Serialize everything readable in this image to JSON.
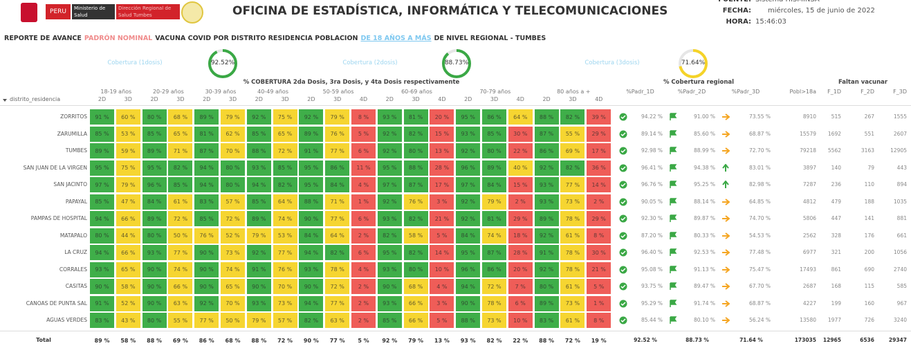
{
  "header": {
    "logo_text": "PERU",
    "ministry": "Ministerio de Salud",
    "direction": "Dirección Regional de Salud Tumbes",
    "title": "OFICINA DE ESTADÍSTICA, INFORMÁTICA Y TELECOMUNICACIONES",
    "info": [
      {
        "label": "FUENTE:",
        "value": "Sistema HISMINSA"
      },
      {
        "label": "FECHA:",
        "value": "miércoles, 15 de junio de 2022"
      },
      {
        "label": "HORA:",
        "value": "15:46:03"
      }
    ]
  },
  "report_title": [
    {
      "text": "REPORTE DE AVANCE",
      "color": "#333333"
    },
    {
      "text": "PADRÓN NOMINAL",
      "color": "#f08c8c"
    },
    {
      "text": "VACUNA COVID POR DISTRITO RESIDENCIA POBLACION",
      "color": "#333333"
    },
    {
      "text": "DE 18 AÑOS A MÁS",
      "color": "#7ec8f0"
    },
    {
      "text": "DE NIVEL REGIONAL - TUMBES",
      "color": "#333333"
    }
  ],
  "gauges": [
    {
      "label": "Cobertura (1dosis)",
      "value": 92.52,
      "value_label": "92.52%",
      "color": "#3aa845"
    },
    {
      "label": "Cobertura (2dosis)",
      "value": 88.73,
      "value_label": "88.73%",
      "color": "#3aa845"
    },
    {
      "label": "Cobertura (3dosis)",
      "value": 71.64,
      "value_label": "71.64%",
      "color": "#f5d328"
    }
  ],
  "table": {
    "caption": "% COBERTURA 2da Dosis, 3ra Dosis, y 4ta Dosis respectivamente",
    "sort_column": "distrito_residencia",
    "age_groups": [
      {
        "label": "18-19 años",
        "doses": [
          "2D",
          "3D"
        ]
      },
      {
        "label": "20-29 años",
        "doses": [
          "2D",
          "3D"
        ]
      },
      {
        "label": "30-39 años",
        "doses": [
          "2D",
          "3D"
        ]
      },
      {
        "label": "40-49 años",
        "doses": [
          "2D",
          "3D"
        ]
      },
      {
        "label": "50-59 años",
        "doses": [
          "2D",
          "3D",
          "4D"
        ]
      },
      {
        "label": "60-69 años",
        "doses": [
          "2D",
          "3D",
          "4D"
        ]
      },
      {
        "label": "70-79 años",
        "doses": [
          "2D",
          "3D",
          "4D"
        ]
      },
      {
        "label": "80 años a +",
        "doses": [
          "2D",
          "3D",
          "4D"
        ]
      }
    ],
    "regional_caption": "% Cobertura regional",
    "pending_caption": "Faltan vacunar",
    "right_columns": [
      "%Padr_1D",
      "%Padr_2D",
      "%Padr_3D",
      "Pobl>18a",
      "F_1D",
      "F_2D",
      "F_3D"
    ],
    "rows": [
      {
        "district": "ZORRITOS",
        "cells": [
          "91 %",
          "60 %",
          "80 %",
          "68 %",
          "89 %",
          "79 %",
          "92 %",
          "75 %",
          "92 %",
          "79 %",
          "8 %",
          "93 %",
          "81 %",
          "20 %",
          "95 %",
          "86 %",
          "64 %",
          "88 %",
          "82 %",
          "39 %"
        ],
        "coverage": [
          "94.22 %",
          "91.00 %",
          "73.55 %"
        ],
        "counts": [
          8910,
          515,
          267,
          1555
        ]
      },
      {
        "district": "ZARUMILLA",
        "cells": [
          "85 %",
          "53 %",
          "85 %",
          "65 %",
          "81 %",
          "62 %",
          "85 %",
          "65 %",
          "89 %",
          "76 %",
          "5 %",
          "92 %",
          "82 %",
          "15 %",
          "93 %",
          "85 %",
          "30 %",
          "87 %",
          "55 %",
          "29 %"
        ],
        "coverage": [
          "89.14 %",
          "85.60 %",
          "68.87 %"
        ],
        "counts": [
          15579,
          1692,
          551,
          2607
        ]
      },
      {
        "district": "TUMBES",
        "cells": [
          "89 %",
          "59 %",
          "89 %",
          "71 %",
          "87 %",
          "70 %",
          "88 %",
          "72 %",
          "91 %",
          "77 %",
          "6 %",
          "92 %",
          "80 %",
          "13 %",
          "92 %",
          "80 %",
          "22 %",
          "86 %",
          "69 %",
          "17 %"
        ],
        "coverage": [
          "92.98 %",
          "88.99 %",
          "72.70 %"
        ],
        "counts": [
          79218,
          5562,
          3163,
          12905
        ]
      },
      {
        "district": "SAN JUAN DE LA VIRGEN",
        "cells": [
          "95 %",
          "75 %",
          "95 %",
          "82 %",
          "94 %",
          "80 %",
          "93 %",
          "85 %",
          "95 %",
          "86 %",
          "11 %",
          "95 %",
          "88 %",
          "28 %",
          "96 %",
          "89 %",
          "40 %",
          "92 %",
          "82 %",
          "36 %"
        ],
        "coverage": [
          "96.41 %",
          "94.38 %",
          "83.01 %"
        ],
        "counts": [
          3897,
          140,
          79,
          443
        ]
      },
      {
        "district": "SAN JACINTO",
        "cells": [
          "97 %",
          "79 %",
          "96 %",
          "85 %",
          "94 %",
          "80 %",
          "94 %",
          "82 %",
          "95 %",
          "84 %",
          "4 %",
          "97 %",
          "87 %",
          "17 %",
          "97 %",
          "84 %",
          "15 %",
          "93 %",
          "77 %",
          "14 %"
        ],
        "coverage": [
          "96.76 %",
          "95.25 %",
          "82.98 %"
        ],
        "counts": [
          7287,
          236,
          110,
          894
        ]
      },
      {
        "district": "PAPAYAL",
        "cells": [
          "85 %",
          "47 %",
          "84 %",
          "61 %",
          "83 %",
          "57 %",
          "85 %",
          "64 %",
          "88 %",
          "71 %",
          "1 %",
          "92 %",
          "76 %",
          "3 %",
          "92 %",
          "79 %",
          "2 %",
          "93 %",
          "73 %",
          "2 %"
        ],
        "coverage": [
          "90.05 %",
          "88.14 %",
          "64.85 %"
        ],
        "counts": [
          4812,
          479,
          188,
          1035
        ]
      },
      {
        "district": "PAMPAS DE HOSPITAL",
        "cells": [
          "94 %",
          "66 %",
          "89 %",
          "72 %",
          "85 %",
          "72 %",
          "89 %",
          "74 %",
          "90 %",
          "77 %",
          "6 %",
          "93 %",
          "82 %",
          "21 %",
          "92 %",
          "81 %",
          "29 %",
          "89 %",
          "78 %",
          "29 %"
        ],
        "coverage": [
          "92.30 %",
          "89.87 %",
          "74.70 %"
        ],
        "counts": [
          5806,
          447,
          141,
          881
        ]
      },
      {
        "district": "MATAPALO",
        "cells": [
          "80 %",
          "44 %",
          "80 %",
          "50 %",
          "76 %",
          "52 %",
          "79 %",
          "53 %",
          "84 %",
          "64 %",
          "2 %",
          "82 %",
          "58 %",
          "5 %",
          "84 %",
          "74 %",
          "18 %",
          "92 %",
          "61 %",
          "8 %"
        ],
        "coverage": [
          "87.20 %",
          "80.33 %",
          "54.53 %"
        ],
        "counts": [
          2562,
          328,
          176,
          661
        ]
      },
      {
        "district": "LA CRUZ",
        "cells": [
          "94 %",
          "66 %",
          "93 %",
          "77 %",
          "90 %",
          "73 %",
          "92 %",
          "77 %",
          "94 %",
          "82 %",
          "6 %",
          "95 %",
          "82 %",
          "14 %",
          "95 %",
          "87 %",
          "28 %",
          "91 %",
          "78 %",
          "30 %"
        ],
        "coverage": [
          "96.40 %",
          "92.53 %",
          "77.48 %"
        ],
        "counts": [
          6977,
          321,
          200,
          1056
        ]
      },
      {
        "district": "CORRALES",
        "cells": [
          "93 %",
          "65 %",
          "90 %",
          "74 %",
          "90 %",
          "74 %",
          "91 %",
          "76 %",
          "93 %",
          "78 %",
          "4 %",
          "93 %",
          "80 %",
          "10 %",
          "96 %",
          "86 %",
          "20 %",
          "92 %",
          "78 %",
          "21 %"
        ],
        "coverage": [
          "95.08 %",
          "91.13 %",
          "75.47 %"
        ],
        "counts": [
          17493,
          861,
          690,
          2740
        ]
      },
      {
        "district": "CASITAS",
        "cells": [
          "90 %",
          "58 %",
          "90 %",
          "66 %",
          "90 %",
          "65 %",
          "90 %",
          "70 %",
          "90 %",
          "72 %",
          "2 %",
          "90 %",
          "68 %",
          "4 %",
          "94 %",
          "72 %",
          "7 %",
          "80 %",
          "61 %",
          "5 %"
        ],
        "coverage": [
          "93.75 %",
          "89.47 %",
          "67.70 %"
        ],
        "counts": [
          2687,
          168,
          115,
          585
        ]
      },
      {
        "district": "CANOAS DE PUNTA SAL",
        "cells": [
          "91 %",
          "52 %",
          "90 %",
          "63 %",
          "92 %",
          "70 %",
          "93 %",
          "73 %",
          "94 %",
          "77 %",
          "2 %",
          "93 %",
          "66 %",
          "3 %",
          "90 %",
          "78 %",
          "6 %",
          "89 %",
          "73 %",
          "1 %"
        ],
        "coverage": [
          "95.29 %",
          "91.74 %",
          "68.87 %"
        ],
        "counts": [
          4227,
          199,
          160,
          967
        ]
      },
      {
        "district": "AGUAS VERDES",
        "cells": [
          "83 %",
          "43 %",
          "80 %",
          "55 %",
          "77 %",
          "50 %",
          "79 %",
          "57 %",
          "82 %",
          "63 %",
          "2 %",
          "85 %",
          "66 %",
          "5 %",
          "88 %",
          "73 %",
          "10 %",
          "83 %",
          "61 %",
          "8 %"
        ],
        "coverage": [
          "85.44 %",
          "80.10 %",
          "56.24 %"
        ],
        "counts": [
          13580,
          1977,
          726,
          3240
        ]
      }
    ],
    "total": {
      "district": "Total",
      "cells": [
        "89 %",
        "58 %",
        "88 %",
        "69 %",
        "86 %",
        "68 %",
        "88 %",
        "72 %",
        "90 %",
        "77 %",
        "5 %",
        "92 %",
        "79 %",
        "13 %",
        "93 %",
        "82 %",
        "22 %",
        "88 %",
        "72 %",
        "19 %"
      ],
      "coverage": [
        "92.52 %",
        "88.73 %",
        "71.64 %"
      ],
      "counts": [
        173035,
        12965,
        6536,
        29347
      ]
    }
  }
}
